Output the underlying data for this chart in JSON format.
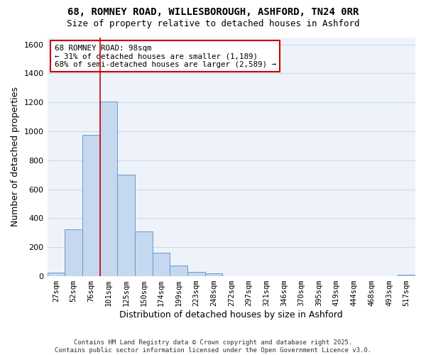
{
  "title_line1": "68, ROMNEY ROAD, WILLESBOROUGH, ASHFORD, TN24 0RR",
  "title_line2": "Size of property relative to detached houses in Ashford",
  "xlabel": "Distribution of detached houses by size in Ashford",
  "ylabel": "Number of detached properties",
  "bar_labels": [
    "27sqm",
    "52sqm",
    "76sqm",
    "101sqm",
    "125sqm",
    "150sqm",
    "174sqm",
    "199sqm",
    "223sqm",
    "248sqm",
    "272sqm",
    "297sqm",
    "321sqm",
    "346sqm",
    "370sqm",
    "395sqm",
    "419sqm",
    "444sqm",
    "468sqm",
    "493sqm",
    "517sqm"
  ],
  "bar_values": [
    25,
    325,
    975,
    1205,
    700,
    310,
    160,
    75,
    30,
    20,
    0,
    0,
    0,
    0,
    0,
    0,
    0,
    0,
    0,
    0,
    10
  ],
  "bar_color": "#c5d8f0",
  "bar_edge_color": "#6699cc",
  "bg_color": "#ffffff",
  "plot_bg_color": "#eef3fb",
  "grid_color": "#d0d8e8",
  "vline_x_idx": 3,
  "vline_color": "#cc0000",
  "annotation_text": "68 ROMNEY ROAD: 98sqm\n← 31% of detached houses are smaller (1,189)\n68% of semi-detached houses are larger (2,589) →",
  "annotation_box_color": "#cc0000",
  "ylim": [
    0,
    1650
  ],
  "yticks": [
    0,
    200,
    400,
    600,
    800,
    1000,
    1200,
    1400,
    1600
  ],
  "footer": "Contains HM Land Registry data © Crown copyright and database right 2025.\nContains public sector information licensed under the Open Government Licence v3.0."
}
